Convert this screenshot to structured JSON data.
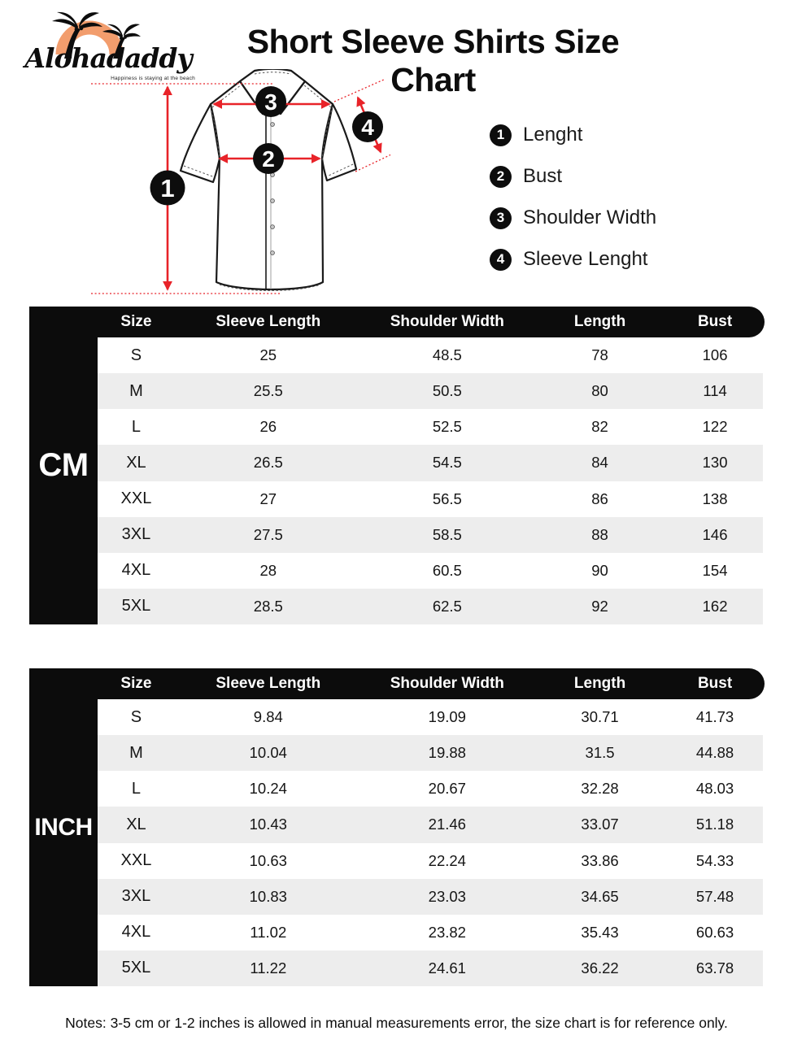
{
  "brand": {
    "name": "Alohadaddy",
    "tagline": "Happiness is staying at the beach"
  },
  "title": "Short Sleeve Shirts Size Chart",
  "legend": [
    {
      "num": "1",
      "label": "Lenght"
    },
    {
      "num": "2",
      "label": "Bust"
    },
    {
      "num": "3",
      "label": "Shoulder Width"
    },
    {
      "num": "4",
      "label": "Sleeve Lenght"
    }
  ],
  "tables": [
    {
      "unit": "CM",
      "columns": [
        "Size",
        "Sleeve Length",
        "Shoulder Width",
        "Length",
        "Bust"
      ],
      "rows": [
        [
          "S",
          "25",
          "48.5",
          "78",
          "106"
        ],
        [
          "M",
          "25.5",
          "50.5",
          "80",
          "114"
        ],
        [
          "L",
          "26",
          "52.5",
          "82",
          "122"
        ],
        [
          "XL",
          "26.5",
          "54.5",
          "84",
          "130"
        ],
        [
          "XXL",
          "27",
          "56.5",
          "86",
          "138"
        ],
        [
          "3XL",
          "27.5",
          "58.5",
          "88",
          "146"
        ],
        [
          "4XL",
          "28",
          "60.5",
          "90",
          "154"
        ],
        [
          "5XL",
          "28.5",
          "62.5",
          "92",
          "162"
        ]
      ]
    },
    {
      "unit": "INCH",
      "columns": [
        "Size",
        "Sleeve Length",
        "Shoulder Width",
        "Length",
        "Bust"
      ],
      "rows": [
        [
          "S",
          "9.84",
          "19.09",
          "30.71",
          "41.73"
        ],
        [
          "M",
          "10.04",
          "19.88",
          "31.5",
          "44.88"
        ],
        [
          "L",
          "10.24",
          "20.67",
          "32.28",
          "48.03"
        ],
        [
          "XL",
          "10.43",
          "21.46",
          "33.07",
          "51.18"
        ],
        [
          "XXL",
          "10.63",
          "22.24",
          "33.86",
          "54.33"
        ],
        [
          "3XL",
          "10.83",
          "23.03",
          "34.65",
          "57.48"
        ],
        [
          "4XL",
          "11.02",
          "23.82",
          "35.43",
          "60.63"
        ],
        [
          "5XL",
          "11.22",
          "24.61",
          "36.22",
          "63.78"
        ]
      ]
    }
  ],
  "notes": "Notes: 3-5 cm or 1-2 inches is allowed in manual measurements error, the size chart is for reference only.",
  "colors": {
    "accent_red": "#e82329",
    "sun_orange": "#f29d6d",
    "header_black": "#0c0c0c",
    "row_alt_gray": "#ededed"
  }
}
